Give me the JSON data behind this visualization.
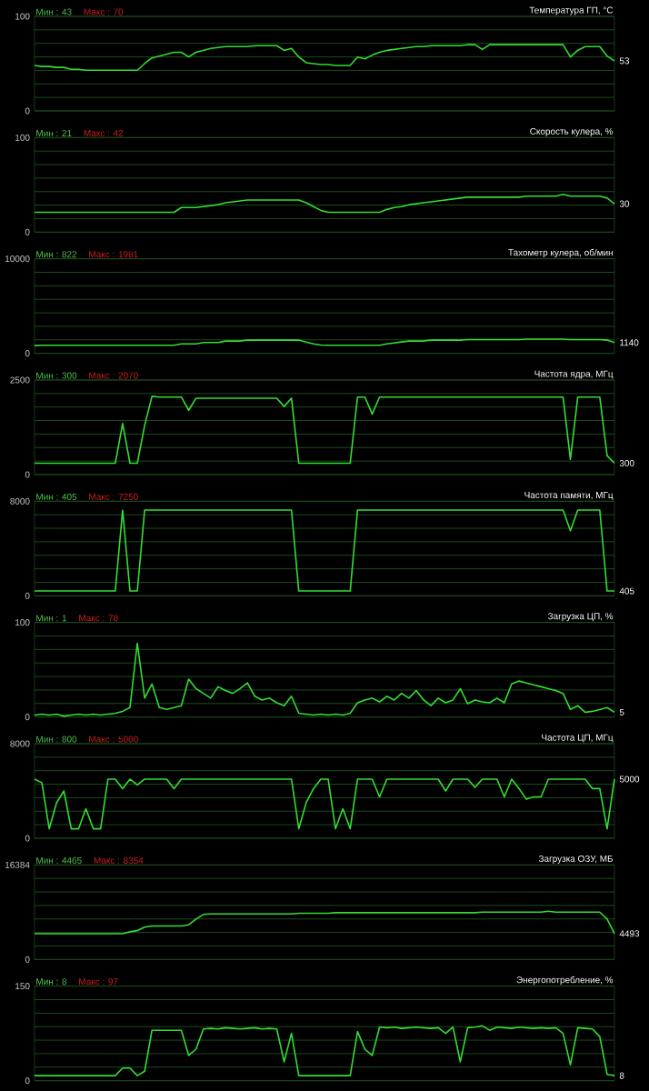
{
  "chart_data": [
    {
      "type": "line",
      "title": "Температура ГП, °C",
      "color": "#33dd33",
      "ylim": [
        0,
        100
      ],
      "yticks": [
        0,
        {
          "value": 14.29,
          "label": null
        },
        {
          "value": 28.57,
          "label": null
        },
        {
          "value": 42.86,
          "label": null
        },
        {
          "value": 57.14,
          "label": null
        },
        {
          "value": 71.43,
          "label": null
        },
        {
          "value": 85.71,
          "label": null
        },
        100
      ],
      "grid": true,
      "tick_labels": "y",
      "annotations": [
        "Мин : 43",
        "Макс : 70"
      ],
      "value_labels": [
        null,
        null,
        null,
        null,
        null,
        null,
        null,
        null,
        null,
        null,
        null,
        null,
        null,
        null,
        null,
        null,
        null,
        null,
        null,
        null,
        null,
        null,
        null,
        null,
        null,
        null,
        null,
        null,
        null,
        null,
        null,
        null,
        null,
        null,
        null,
        null,
        null,
        null,
        null,
        null,
        null,
        null,
        null,
        null,
        null,
        null,
        null,
        null,
        null,
        null,
        null,
        null,
        null,
        null,
        null,
        null,
        null,
        null,
        null,
        null,
        null,
        null,
        null,
        null,
        null,
        null,
        null,
        null,
        null,
        null,
        null,
        null,
        null,
        null,
        null,
        null,
        null,
        null,
        null,
        "53"
      ],
      "categories": [
        null,
        null,
        null,
        null,
        null,
        null,
        null,
        null,
        null,
        null,
        null,
        null,
        null,
        null,
        null,
        null,
        null,
        null,
        null,
        null,
        null,
        null,
        null,
        null,
        null,
        null,
        null,
        null,
        null,
        null,
        null,
        null,
        null,
        null,
        null,
        null,
        null,
        null,
        null,
        null,
        null,
        null,
        null,
        null,
        null,
        null,
        null,
        null,
        null,
        null,
        null,
        null,
        null,
        null,
        null,
        null,
        null,
        null,
        null,
        null,
        null,
        null,
        null,
        null,
        null,
        null,
        null,
        null,
        null,
        null,
        null,
        null,
        null,
        null,
        null,
        null,
        null,
        null,
        null,
        null
      ],
      "values": [
        48,
        47,
        47,
        46,
        46,
        44,
        44,
        43,
        43,
        43,
        43,
        43,
        43,
        43,
        43,
        50,
        56,
        58,
        60,
        62,
        62,
        57,
        62,
        64,
        66,
        67,
        68,
        68,
        68,
        68,
        69,
        69,
        69,
        69,
        64,
        66,
        57,
        51,
        50,
        49,
        49,
        48,
        48,
        48,
        57,
        55,
        59,
        62,
        64,
        65,
        66,
        67,
        68,
        68,
        69,
        69,
        69,
        69,
        69,
        70,
        70,
        65,
        70,
        70,
        70,
        70,
        70,
        70,
        70,
        70,
        70,
        70,
        70,
        57,
        64,
        68,
        68,
        68,
        58,
        53
      ]
    },
    {
      "type": "line",
      "title": "Скорость кулера, %",
      "color": "#33dd33",
      "ylim": [
        0,
        100
      ],
      "yticks": [
        0,
        {
          "value": 14.29,
          "label": null
        },
        {
          "value": 28.57,
          "label": null
        },
        {
          "value": 42.86,
          "label": null
        },
        {
          "value": 57.14,
          "label": null
        },
        {
          "value": 71.43,
          "label": null
        },
        {
          "value": 85.71,
          "label": null
        },
        100
      ],
      "grid": true,
      "tick_labels": "y",
      "annotations": [
        "Мин : 21",
        "Макс : 42"
      ],
      "value_labels": [
        null,
        null,
        null,
        null,
        null,
        null,
        null,
        null,
        null,
        null,
        null,
        null,
        null,
        null,
        null,
        null,
        null,
        null,
        null,
        null,
        null,
        null,
        null,
        null,
        null,
        null,
        null,
        null,
        null,
        null,
        null,
        null,
        null,
        null,
        null,
        null,
        null,
        null,
        null,
        null,
        null,
        null,
        null,
        null,
        null,
        null,
        null,
        null,
        null,
        null,
        null,
        null,
        null,
        null,
        null,
        null,
        null,
        null,
        null,
        null,
        null,
        null,
        null,
        null,
        null,
        null,
        null,
        null,
        null,
        null,
        null,
        null,
        null,
        null,
        null,
        null,
        null,
        null,
        null,
        "30"
      ],
      "categories": [
        null,
        null,
        null,
        null,
        null,
        null,
        null,
        null,
        null,
        null,
        null,
        null,
        null,
        null,
        null,
        null,
        null,
        null,
        null,
        null,
        null,
        null,
        null,
        null,
        null,
        null,
        null,
        null,
        null,
        null,
        null,
        null,
        null,
        null,
        null,
        null,
        null,
        null,
        null,
        null,
        null,
        null,
        null,
        null,
        null,
        null,
        null,
        null,
        null,
        null,
        null,
        null,
        null,
        null,
        null,
        null,
        null,
        null,
        null,
        null,
        null,
        null,
        null,
        null,
        null,
        null,
        null,
        null,
        null,
        null,
        null,
        null,
        null,
        null,
        null,
        null,
        null,
        null,
        null,
        null
      ],
      "values": [
        21,
        21,
        21,
        21,
        21,
        21,
        21,
        21,
        21,
        21,
        21,
        21,
        21,
        21,
        21,
        21,
        21,
        21,
        21,
        21,
        26,
        26,
        26,
        27,
        28,
        29,
        31,
        32,
        33,
        34,
        34,
        34,
        34,
        34,
        34,
        34,
        34,
        31,
        27,
        23,
        21,
        21,
        21,
        21,
        21,
        21,
        21,
        21,
        24,
        26,
        27,
        29,
        30,
        31,
        32,
        33,
        34,
        35,
        36,
        37,
        37,
        37,
        37,
        37,
        37,
        37,
        37,
        38,
        38,
        38,
        38,
        38,
        40,
        38,
        38,
        38,
        38,
        38,
        36,
        30
      ]
    },
    {
      "type": "line",
      "title": "Тахометр кулера, об/мин",
      "color": "#33dd33",
      "ylim": [
        0,
        10000
      ],
      "yticks": [
        0,
        {
          "value": 1429,
          "label": null
        },
        {
          "value": 2857,
          "label": null
        },
        {
          "value": 4286,
          "label": null
        },
        {
          "value": 5714,
          "label": null
        },
        {
          "value": 7143,
          "label": null
        },
        {
          "value": 8571,
          "label": null
        },
        10000
      ],
      "grid": true,
      "tick_labels": "y",
      "annotations": [
        "Мин : 822",
        "Макс : 1981"
      ],
      "value_labels": [
        null,
        null,
        null,
        null,
        null,
        null,
        null,
        null,
        null,
        null,
        null,
        null,
        null,
        null,
        null,
        null,
        null,
        null,
        null,
        null,
        null,
        null,
        null,
        null,
        null,
        null,
        null,
        null,
        null,
        null,
        null,
        null,
        null,
        null,
        null,
        null,
        null,
        null,
        null,
        null,
        null,
        null,
        null,
        null,
        null,
        null,
        null,
        null,
        null,
        null,
        null,
        null,
        null,
        null,
        null,
        null,
        null,
        null,
        null,
        null,
        null,
        null,
        null,
        null,
        null,
        null,
        null,
        null,
        null,
        null,
        null,
        null,
        null,
        null,
        null,
        null,
        null,
        null,
        null,
        "1140"
      ],
      "categories": [
        null,
        null,
        null,
        null,
        null,
        null,
        null,
        null,
        null,
        null,
        null,
        null,
        null,
        null,
        null,
        null,
        null,
        null,
        null,
        null,
        null,
        null,
        null,
        null,
        null,
        null,
        null,
        null,
        null,
        null,
        null,
        null,
        null,
        null,
        null,
        null,
        null,
        null,
        null,
        null,
        null,
        null,
        null,
        null,
        null,
        null,
        null,
        null,
        null,
        null,
        null,
        null,
        null,
        null,
        null,
        null,
        null,
        null,
        null,
        null,
        null,
        null,
        null,
        null,
        null,
        null,
        null,
        null,
        null,
        null,
        null,
        null,
        null,
        null,
        null,
        null,
        null,
        null,
        null,
        null
      ],
      "values": [
        822,
        850,
        850,
        850,
        850,
        850,
        850,
        850,
        850,
        850,
        850,
        850,
        850,
        850,
        850,
        850,
        850,
        850,
        850,
        850,
        1000,
        1000,
        1000,
        1150,
        1150,
        1150,
        1300,
        1300,
        1300,
        1400,
        1400,
        1400,
        1400,
        1400,
        1400,
        1400,
        1400,
        1200,
        1000,
        880,
        850,
        850,
        850,
        850,
        850,
        850,
        850,
        850,
        1000,
        1100,
        1200,
        1300,
        1300,
        1300,
        1400,
        1400,
        1400,
        1400,
        1400,
        1450,
        1450,
        1450,
        1450,
        1450,
        1450,
        1450,
        1450,
        1500,
        1500,
        1500,
        1500,
        1500,
        1500,
        1450,
        1450,
        1450,
        1450,
        1450,
        1400,
        1140
      ]
    },
    {
      "type": "line",
      "title": "Частота ядра, МГц",
      "color": "#33dd33",
      "ylim": [
        0,
        2500
      ],
      "yticks": [
        0,
        {
          "value": 357.1,
          "label": null
        },
        {
          "value": 714.3,
          "label": null
        },
        {
          "value": 1071,
          "label": null
        },
        {
          "value": 1429,
          "label": null
        },
        {
          "value": 1786,
          "label": null
        },
        {
          "value": 2143,
          "label": null
        },
        2500
      ],
      "grid": true,
      "tick_labels": "y",
      "annotations": [
        "Мин : 300",
        "Макс : 2070"
      ],
      "value_labels": [
        null,
        null,
        null,
        null,
        null,
        null,
        null,
        null,
        null,
        null,
        null,
        null,
        null,
        null,
        null,
        null,
        null,
        null,
        null,
        null,
        null,
        null,
        null,
        null,
        null,
        null,
        null,
        null,
        null,
        null,
        null,
        null,
        null,
        null,
        null,
        null,
        null,
        null,
        null,
        null,
        null,
        null,
        null,
        null,
        null,
        null,
        null,
        null,
        null,
        null,
        null,
        null,
        null,
        null,
        null,
        null,
        null,
        null,
        null,
        null,
        null,
        null,
        null,
        null,
        null,
        null,
        null,
        null,
        null,
        null,
        null,
        null,
        null,
        null,
        null,
        null,
        null,
        null,
        null,
        "300"
      ],
      "categories": [
        null,
        null,
        null,
        null,
        null,
        null,
        null,
        null,
        null,
        null,
        null,
        null,
        null,
        null,
        null,
        null,
        null,
        null,
        null,
        null,
        null,
        null,
        null,
        null,
        null,
        null,
        null,
        null,
        null,
        null,
        null,
        null,
        null,
        null,
        null,
        null,
        null,
        null,
        null,
        null,
        null,
        null,
        null,
        null,
        null,
        null,
        null,
        null,
        null,
        null,
        null,
        null,
        null,
        null,
        null,
        null,
        null,
        null,
        null,
        null,
        null,
        null,
        null,
        null,
        null,
        null,
        null,
        null,
        null,
        null,
        null,
        null,
        null,
        null,
        null,
        null,
        null,
        null,
        null,
        null
      ],
      "values": [
        300,
        300,
        300,
        300,
        300,
        300,
        300,
        300,
        300,
        300,
        300,
        300,
        1350,
        300,
        300,
        1300,
        2070,
        2050,
        2050,
        2050,
        2050,
        1700,
        2020,
        2020,
        2020,
        2020,
        2020,
        2020,
        2020,
        2020,
        2020,
        2020,
        2020,
        2020,
        1800,
        2020,
        300,
        300,
        300,
        300,
        300,
        300,
        300,
        300,
        2050,
        2050,
        1600,
        2050,
        2050,
        2050,
        2050,
        2050,
        2050,
        2050,
        2050,
        2050,
        2050,
        2050,
        2050,
        2050,
        2050,
        2050,
        2050,
        2050,
        2050,
        2050,
        2050,
        2050,
        2050,
        2050,
        2050,
        2050,
        2050,
        400,
        2050,
        2050,
        2050,
        2050,
        500,
        300
      ]
    },
    {
      "type": "line",
      "title": "Частота памяти, МГц",
      "color": "#33dd33",
      "ylim": [
        0,
        8000
      ],
      "yticks": [
        0,
        {
          "value": 1143,
          "label": null
        },
        {
          "value": 2286,
          "label": null
        },
        {
          "value": 3429,
          "label": null
        },
        {
          "value": 4571,
          "label": null
        },
        {
          "value": 5714,
          "label": null
        },
        {
          "value": 6857,
          "label": null
        },
        8000
      ],
      "grid": true,
      "tick_labels": "y",
      "annotations": [
        "Мин : 405",
        "Макс : 7250"
      ],
      "value_labels": [
        null,
        null,
        null,
        null,
        null,
        null,
        null,
        null,
        null,
        null,
        null,
        null,
        null,
        null,
        null,
        null,
        null,
        null,
        null,
        null,
        null,
        null,
        null,
        null,
        null,
        null,
        null,
        null,
        null,
        null,
        null,
        null,
        null,
        null,
        null,
        null,
        null,
        null,
        null,
        null,
        null,
        null,
        null,
        null,
        null,
        null,
        null,
        null,
        null,
        null,
        null,
        null,
        null,
        null,
        null,
        null,
        null,
        null,
        null,
        null,
        null,
        null,
        null,
        null,
        null,
        null,
        null,
        null,
        null,
        null,
        null,
        null,
        null,
        null,
        null,
        null,
        null,
        null,
        null,
        "405"
      ],
      "categories": [
        null,
        null,
        null,
        null,
        null,
        null,
        null,
        null,
        null,
        null,
        null,
        null,
        null,
        null,
        null,
        null,
        null,
        null,
        null,
        null,
        null,
        null,
        null,
        null,
        null,
        null,
        null,
        null,
        null,
        null,
        null,
        null,
        null,
        null,
        null,
        null,
        null,
        null,
        null,
        null,
        null,
        null,
        null,
        null,
        null,
        null,
        null,
        null,
        null,
        null,
        null,
        null,
        null,
        null,
        null,
        null,
        null,
        null,
        null,
        null,
        null,
        null,
        null,
        null,
        null,
        null,
        null,
        null,
        null,
        null,
        null,
        null,
        null,
        null,
        null,
        null,
        null,
        null,
        null,
        null
      ],
      "values": [
        405,
        405,
        405,
        405,
        405,
        405,
        405,
        405,
        405,
        405,
        405,
        405,
        7250,
        405,
        405,
        7250,
        7250,
        7250,
        7250,
        7250,
        7250,
        7250,
        7250,
        7250,
        7250,
        7250,
        7250,
        7250,
        7250,
        7250,
        7250,
        7250,
        7250,
        7250,
        7250,
        7250,
        405,
        405,
        405,
        405,
        405,
        405,
        405,
        405,
        7250,
        7250,
        7250,
        7250,
        7250,
        7250,
        7250,
        7250,
        7250,
        7250,
        7250,
        7250,
        7250,
        7250,
        7250,
        7250,
        7250,
        7250,
        7250,
        7250,
        7250,
        7250,
        7250,
        7250,
        7250,
        7250,
        7250,
        7250,
        7250,
        5500,
        7250,
        7250,
        7250,
        7250,
        405,
        405
      ]
    },
    {
      "type": "line",
      "title": "Загрузка ЦП, %",
      "color": "#33dd33",
      "ylim": [
        0,
        100
      ],
      "yticks": [
        0,
        {
          "value": 14.29,
          "label": null
        },
        {
          "value": 28.57,
          "label": null
        },
        {
          "value": 42.86,
          "label": null
        },
        {
          "value": 57.14,
          "label": null
        },
        {
          "value": 71.43,
          "label": null
        },
        {
          "value": 85.71,
          "label": null
        },
        100
      ],
      "grid": true,
      "tick_labels": "y",
      "annotations": [
        "Мин : 1",
        "Макс : 78"
      ],
      "value_labels": [
        null,
        null,
        null,
        null,
        null,
        null,
        null,
        null,
        null,
        null,
        null,
        null,
        null,
        null,
        null,
        null,
        null,
        null,
        null,
        null,
        null,
        null,
        null,
        null,
        null,
        null,
        null,
        null,
        null,
        null,
        null,
        null,
        null,
        null,
        null,
        null,
        null,
        null,
        null,
        null,
        null,
        null,
        null,
        null,
        null,
        null,
        null,
        null,
        null,
        null,
        null,
        null,
        null,
        null,
        null,
        null,
        null,
        null,
        null,
        null,
        null,
        null,
        null,
        null,
        null,
        null,
        null,
        null,
        null,
        null,
        null,
        null,
        null,
        null,
        null,
        null,
        null,
        null,
        null,
        "5"
      ],
      "categories": [
        null,
        null,
        null,
        null,
        null,
        null,
        null,
        null,
        null,
        null,
        null,
        null,
        null,
        null,
        null,
        null,
        null,
        null,
        null,
        null,
        null,
        null,
        null,
        null,
        null,
        null,
        null,
        null,
        null,
        null,
        null,
        null,
        null,
        null,
        null,
        null,
        null,
        null,
        null,
        null,
        null,
        null,
        null,
        null,
        null,
        null,
        null,
        null,
        null,
        null,
        null,
        null,
        null,
        null,
        null,
        null,
        null,
        null,
        null,
        null,
        null,
        null,
        null,
        null,
        null,
        null,
        null,
        null,
        null,
        null,
        null,
        null,
        null,
        null,
        null,
        null,
        null,
        null,
        null,
        null
      ],
      "values": [
        2,
        3,
        2,
        3,
        1,
        2,
        3,
        2,
        3,
        2,
        3,
        4,
        6,
        10,
        78,
        20,
        35,
        10,
        8,
        10,
        12,
        40,
        30,
        25,
        20,
        32,
        28,
        25,
        30,
        36,
        22,
        18,
        20,
        15,
        12,
        22,
        4,
        3,
        2,
        3,
        2,
        3,
        2,
        4,
        15,
        18,
        20,
        16,
        22,
        18,
        25,
        20,
        28,
        18,
        12,
        20,
        15,
        18,
        30,
        14,
        18,
        16,
        15,
        20,
        15,
        35,
        38,
        36,
        34,
        32,
        30,
        28,
        25,
        8,
        12,
        5,
        6,
        8,
        10,
        5
      ]
    },
    {
      "type": "line",
      "title": "Частота ЦП, МГц",
      "color": "#33dd33",
      "ylim": [
        0,
        8000
      ],
      "yticks": [
        0,
        {
          "value": 1143,
          "label": null
        },
        {
          "value": 2286,
          "label": null
        },
        {
          "value": 3429,
          "label": null
        },
        {
          "value": 4571,
          "label": null
        },
        {
          "value": 5714,
          "label": null
        },
        {
          "value": 6857,
          "label": null
        },
        8000
      ],
      "grid": true,
      "tick_labels": "y",
      "annotations": [
        "Мин : 800",
        "Макс : 5000"
      ],
      "value_labels": [
        null,
        null,
        null,
        null,
        null,
        null,
        null,
        null,
        null,
        null,
        null,
        null,
        null,
        null,
        null,
        null,
        null,
        null,
        null,
        null,
        null,
        null,
        null,
        null,
        null,
        null,
        null,
        null,
        null,
        null,
        null,
        null,
        null,
        null,
        null,
        null,
        null,
        null,
        null,
        null,
        null,
        null,
        null,
        null,
        null,
        null,
        null,
        null,
        null,
        null,
        null,
        null,
        null,
        null,
        null,
        null,
        null,
        null,
        null,
        null,
        null,
        null,
        null,
        null,
        null,
        null,
        null,
        null,
        null,
        null,
        null,
        null,
        null,
        null,
        null,
        null,
        null,
        null,
        null,
        "5000"
      ],
      "categories": [
        null,
        null,
        null,
        null,
        null,
        null,
        null,
        null,
        null,
        null,
        null,
        null,
        null,
        null,
        null,
        null,
        null,
        null,
        null,
        null,
        null,
        null,
        null,
        null,
        null,
        null,
        null,
        null,
        null,
        null,
        null,
        null,
        null,
        null,
        null,
        null,
        null,
        null,
        null,
        null,
        null,
        null,
        null,
        null,
        null,
        null,
        null,
        null,
        null,
        null,
        null,
        null,
        null,
        null,
        null,
        null,
        null,
        null,
        null,
        null,
        null,
        null,
        null,
        null,
        null,
        null,
        null,
        null,
        null,
        null,
        null,
        null,
        null,
        null,
        null,
        null,
        null,
        null,
        null,
        null
      ],
      "values": [
        5000,
        4700,
        800,
        3000,
        4000,
        800,
        800,
        2500,
        800,
        800,
        5000,
        5000,
        4200,
        5000,
        4500,
        5000,
        5000,
        5000,
        5000,
        4200,
        5000,
        5000,
        5000,
        5000,
        5000,
        5000,
        5000,
        5000,
        5000,
        5000,
        5000,
        5000,
        5000,
        5000,
        5000,
        5000,
        800,
        3000,
        4200,
        5000,
        5000,
        800,
        2500,
        800,
        5000,
        5000,
        5000,
        3500,
        5000,
        5000,
        5000,
        5000,
        5000,
        5000,
        5000,
        5000,
        4000,
        5000,
        5000,
        5000,
        4300,
        5000,
        5000,
        5000,
        3500,
        5000,
        4200,
        3300,
        3500,
        3500,
        5000,
        5000,
        5000,
        5000,
        5000,
        5000,
        4200,
        4200,
        800,
        5000
      ]
    },
    {
      "type": "line",
      "title": "Загрузка ОЗУ, МБ",
      "color": "#33dd33",
      "ylim": [
        0,
        16384
      ],
      "yticks": [
        0,
        {
          "value": 2341,
          "label": null
        },
        {
          "value": 4681,
          "label": null
        },
        {
          "value": 7022,
          "label": null
        },
        {
          "value": 9362,
          "label": null
        },
        {
          "value": 11703,
          "label": null
        },
        {
          "value": 14043,
          "label": null
        },
        16384
      ],
      "grid": true,
      "tick_labels": "y",
      "annotations": [
        "Мин : 4465",
        "Макс : 8354"
      ],
      "value_labels": [
        null,
        null,
        null,
        null,
        null,
        null,
        null,
        null,
        null,
        null,
        null,
        null,
        null,
        null,
        null,
        null,
        null,
        null,
        null,
        null,
        null,
        null,
        null,
        null,
        null,
        null,
        null,
        null,
        null,
        null,
        null,
        null,
        null,
        null,
        null,
        null,
        null,
        null,
        null,
        null,
        null,
        null,
        null,
        null,
        null,
        null,
        null,
        null,
        null,
        null,
        null,
        null,
        null,
        null,
        null,
        null,
        null,
        null,
        null,
        null,
        null,
        null,
        null,
        null,
        null,
        null,
        null,
        null,
        null,
        null,
        null,
        null,
        null,
        null,
        null,
        null,
        null,
        null,
        null,
        "4493"
      ],
      "categories": [
        null,
        null,
        null,
        null,
        null,
        null,
        null,
        null,
        null,
        null,
        null,
        null,
        null,
        null,
        null,
        null,
        null,
        null,
        null,
        null,
        null,
        null,
        null,
        null,
        null,
        null,
        null,
        null,
        null,
        null,
        null,
        null,
        null,
        null,
        null,
        null,
        null,
        null,
        null,
        null,
        null,
        null,
        null,
        null,
        null,
        null,
        null,
        null,
        null,
        null,
        null,
        null,
        null,
        null,
        null,
        null,
        null,
        null,
        null,
        null,
        null,
        null,
        null,
        null,
        null,
        null,
        null,
        null,
        null,
        null,
        null,
        null,
        null,
        null,
        null,
        null,
        null,
        null,
        null,
        null
      ],
      "values": [
        4465,
        4465,
        4465,
        4465,
        4465,
        4465,
        4465,
        4465,
        4465,
        4465,
        4465,
        4465,
        4465,
        4800,
        5000,
        5600,
        5800,
        5800,
        5800,
        5800,
        5800,
        6000,
        7000,
        7800,
        7900,
        7900,
        7900,
        7900,
        7900,
        7900,
        7900,
        7900,
        7900,
        7900,
        7900,
        7900,
        8000,
        8000,
        8000,
        8000,
        8000,
        8100,
        8100,
        8100,
        8100,
        8100,
        8100,
        8100,
        8100,
        8100,
        8100,
        8100,
        8100,
        8100,
        8100,
        8100,
        8100,
        8100,
        8100,
        8100,
        8100,
        8200,
        8200,
        8200,
        8200,
        8200,
        8200,
        8200,
        8200,
        8200,
        8354,
        8200,
        8200,
        8200,
        8200,
        8200,
        8200,
        8200,
        7000,
        4493
      ]
    },
    {
      "type": "line",
      "title": "Энергопотребление, %",
      "color": "#33dd33",
      "ylim": [
        0,
        150
      ],
      "yticks": [
        0,
        {
          "value": 21.43,
          "label": null
        },
        {
          "value": 42.86,
          "label": null
        },
        {
          "value": 64.29,
          "label": null
        },
        {
          "value": 85.71,
          "label": null
        },
        {
          "value": 107.1,
          "label": null
        },
        {
          "value": 128.6,
          "label": null
        },
        150
      ],
      "grid": true,
      "tick_labels": "y",
      "annotations": [
        "Мин : 8",
        "Макс : 97"
      ],
      "value_labels": [
        null,
        null,
        null,
        null,
        null,
        null,
        null,
        null,
        null,
        null,
        null,
        null,
        null,
        null,
        null,
        null,
        null,
        null,
        null,
        null,
        null,
        null,
        null,
        null,
        null,
        null,
        null,
        null,
        null,
        null,
        null,
        null,
        null,
        null,
        null,
        null,
        null,
        null,
        null,
        null,
        null,
        null,
        null,
        null,
        null,
        null,
        null,
        null,
        null,
        null,
        null,
        null,
        null,
        null,
        null,
        null,
        null,
        null,
        null,
        null,
        null,
        null,
        null,
        null,
        null,
        null,
        null,
        null,
        null,
        null,
        null,
        null,
        null,
        null,
        null,
        null,
        null,
        null,
        null,
        "8"
      ],
      "categories": [
        null,
        null,
        null,
        null,
        null,
        null,
        null,
        null,
        null,
        null,
        null,
        null,
        null,
        null,
        null,
        null,
        null,
        null,
        null,
        null,
        null,
        null,
        null,
        null,
        null,
        null,
        null,
        null,
        null,
        null,
        null,
        null,
        null,
        null,
        null,
        null,
        null,
        null,
        null,
        null,
        null,
        null,
        null,
        null,
        null,
        null,
        null,
        null,
        null,
        null,
        null,
        null,
        null,
        null,
        null,
        null,
        null,
        null,
        null,
        null,
        null,
        null,
        null,
        null,
        null,
        null,
        null,
        null,
        null,
        null,
        null,
        null,
        null,
        null,
        null,
        null,
        null,
        null,
        null,
        null
      ],
      "values": [
        8,
        8,
        8,
        8,
        8,
        8,
        8,
        8,
        8,
        8,
        8,
        8,
        20,
        20,
        8,
        15,
        80,
        80,
        80,
        80,
        80,
        40,
        50,
        82,
        83,
        82,
        84,
        83,
        82,
        83,
        84,
        82,
        83,
        82,
        30,
        75,
        8,
        8,
        8,
        8,
        8,
        8,
        8,
        8,
        78,
        50,
        40,
        85,
        84,
        85,
        83,
        84,
        85,
        84,
        83,
        84,
        75,
        85,
        30,
        84,
        85,
        87,
        80,
        85,
        84,
        83,
        85,
        84,
        83,
        84,
        83,
        84,
        75,
        25,
        84,
        83,
        82,
        70,
        10,
        8
      ]
    }
  ]
}
